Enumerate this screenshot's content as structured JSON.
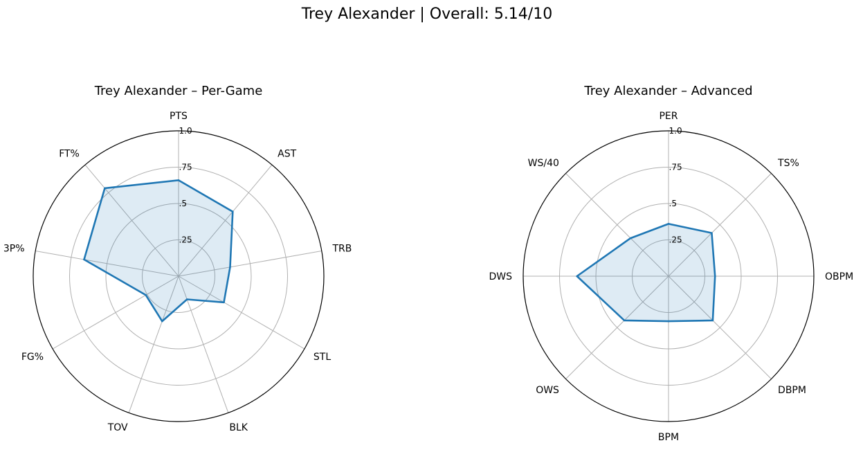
{
  "title": "Trey Alexander | Overall: 5.14/10",
  "colors": {
    "line": "#1f77b4",
    "fill": "#1f77b4",
    "grid": "#b0b0b0",
    "frame": "#000000"
  },
  "chart_data": [
    {
      "type": "radar",
      "title": "Trey Alexander – Per-Game",
      "categories": [
        "PTS",
        "AST",
        "TRB",
        "STL",
        "BLK",
        "TOV",
        "FG%",
        "3P%",
        "FT%"
      ],
      "rlim": [
        0,
        1.0
      ],
      "rticks": [
        0.25,
        0.5,
        0.75,
        1.0
      ],
      "rtick_labels": [
        ".25",
        ".5",
        ".75",
        "1.0"
      ],
      "grid": true,
      "values": [
        0.66,
        0.58,
        0.36,
        0.36,
        0.17,
        0.33,
        0.26,
        0.66,
        0.79
      ]
    },
    {
      "type": "radar",
      "title": "Trey Alexander – Advanced",
      "categories": [
        "PER",
        "TS%",
        "OBPM",
        "DBPM",
        "BPM",
        "OWS",
        "DWS",
        "WS/40"
      ],
      "rlim": [
        0,
        1.0
      ],
      "rticks": [
        0.25,
        0.5,
        0.75,
        1.0
      ],
      "rtick_labels": [
        ".25",
        ".5",
        ".75",
        "1.0"
      ],
      "grid": true,
      "values": [
        0.36,
        0.42,
        0.32,
        0.43,
        0.31,
        0.43,
        0.63,
        0.37
      ]
    }
  ]
}
